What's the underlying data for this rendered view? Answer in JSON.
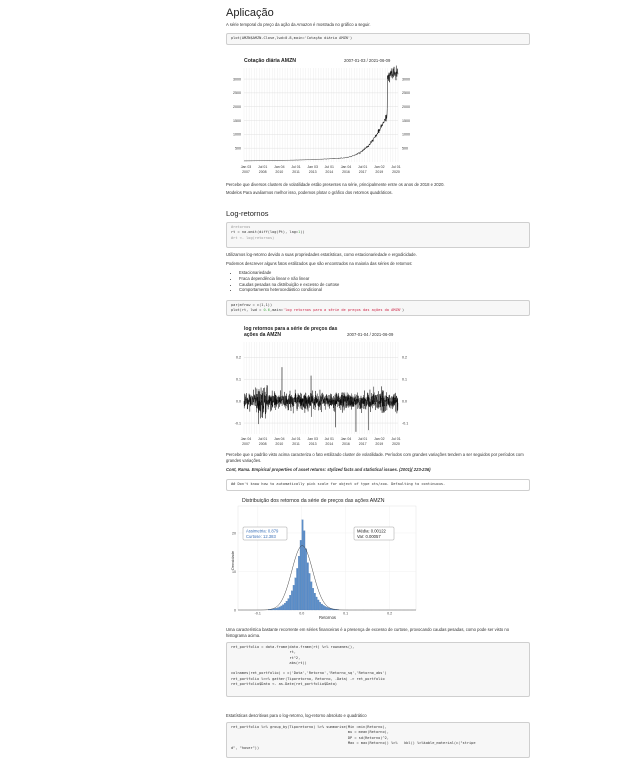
{
  "title": "Aplicação",
  "intro": "A série temporal do preço da ação da Amazon é mostrada no gráfico a seguir.",
  "code1": "plot(AMZN$AMZN.Close,lwd=0.8,main='Cotação diária AMZN')",
  "chart1": {
    "title": "Cotação diária AMZN",
    "range": "2007-01-03 / 2021-06-09",
    "yticks": [
      "3000",
      "2500",
      "2000",
      "1500",
      "1000",
      "500"
    ],
    "xticks_top": [
      "Jan 03",
      "Jul 01",
      "Jan 04",
      "Jul 01",
      "Jan 03",
      "Jul 01",
      "Jan 04",
      "Jul 01",
      "Jan 02",
      "Jul 01"
    ],
    "xticks_bot": [
      "2007",
      "2008",
      "2010",
      "2011",
      "2013",
      "2014",
      "2016",
      "2017",
      "2019",
      "2020"
    ]
  },
  "p1": "Percebe que diversos clusters de volatilidade estão presentes na série, principalmente entre os anos de 2018 e 2020.",
  "p2": "Modelos Para avaliarmos melhor isso, podemos plotar o gráfico dos retornos quadráticos.",
  "h_log": "Log-retornos",
  "code2": {
    "l1": "#retornos",
    "l2a": "rt = na.omit(diff(log(Pt), lag=",
    "l2b": "1",
    "l2c": "))",
    "l3": "#rt <- log(retornos)"
  },
  "p3": "Utilizamos log-retorno devido a suas propriedades estatísticas, como estacionariedade e ergodicidade.",
  "p4": "Podemos descrever alguns fatos estilizados que são encontrados na maioria das séries de retornos:",
  "bullets": [
    "Estacionariedade",
    "Fraca dependência linear e não linear",
    "Caudas pesadas na distribuição e excesso de curtose",
    "Comportamento heterocedástico condicional"
  ],
  "code3": {
    "l1": "par(mfrow = c(1,1))",
    "l2a": "plot(rt, lwd = ",
    "l2b": "0.6",
    "l2c": ",main=",
    "l2d": "'log retornos para a série de preços das ações da AMZN'",
    "l2e": ")"
  },
  "chart2": {
    "title_l1": "log retornos para a série de preços das",
    "title_l2": "ações da AMZN",
    "range": "2007-01-04 / 2021-06-09",
    "yticks": [
      "0.2",
      "0.1",
      "0.0",
      "-0.1"
    ],
    "xticks_top": [
      "Jan 04",
      "Jul 01",
      "Jan 04",
      "Jul 01",
      "Jan 03",
      "Jul 01",
      "Jan 04",
      "Jul 01",
      "Jan 02",
      "Jul 01"
    ],
    "xticks_bot": [
      "2007",
      "2008",
      "2010",
      "2011",
      "2013",
      "2014",
      "2016",
      "2017",
      "2019",
      "2020"
    ]
  },
  "p5": "Percebe que o padrão visto acima caracteriza o fato estilizado cluster de volatilidade. Períodos com grandes variações tendem a ser seguidos por períodos com grandes variações.",
  "citation": "Cont, Rama. Empirical properties of asset returns: stylized facts and statistical issues. (2001)( 223-236)",
  "output1": "## Don't know how to automatically pick scale for object of type xts/zoo. Defaulting to continuous.",
  "chart3": {
    "title": "Distribuição dos retornos da série de preços das ações AMZN",
    "ylabel": "Densidade",
    "xlabel": "Retornos",
    "yticks": [
      "20",
      "10",
      "0"
    ],
    "xticks": [
      "-0.1",
      "0.0",
      "0.1",
      "0.2"
    ],
    "asym": "Assimetria: 0.879",
    "kurt": "Curtose: 12.383",
    "mean": "Média: 0.00122",
    "var": "Var: 0.00057"
  },
  "p6": "Uma característica bastante recorrente em séries financeiras é a presença de excesso de curtose, provocando caudas pesadas, como pode ser visto no histograma acima.",
  "code4": [
    "ret_portfolio = data.frame(data.frame(rt) %>% rownames(),",
    "                           rt,",
    "                           rt^2,",
    "                           abs(rt))",
    "",
    "colnames(ret_portfolio) = c('Data','Retorno','Retorno_sq','Retorno_abs')",
    "ret_portfolio %<>% gather(Tiporetorno, Retorno, -Data) -> ret_portfolio",
    "ret_portfolio$Data <- as.Date(ret_portfolio$Data)"
  ],
  "p7": "Estatísticas descritivas para o log-retorno, log-retorno absoluto e quadrático",
  "code5": [
    "ret_portfolio %>% group_by(Tiporetorno) %>% summarise(Min =min(Retorno),",
    "                                                      mu = mean(Retorno),",
    "                                                      DP = sd(Retorno)^2,",
    "                                                      Max = max(Retorno)) %>%   kbl() %>%kable_material(c(\"stripe",
    "d\", \"hover\"))"
  ],
  "colors": {
    "accent": "#d14",
    "code_bg": "#f7f7f7",
    "hist_fill": "#5b8ec9"
  }
}
